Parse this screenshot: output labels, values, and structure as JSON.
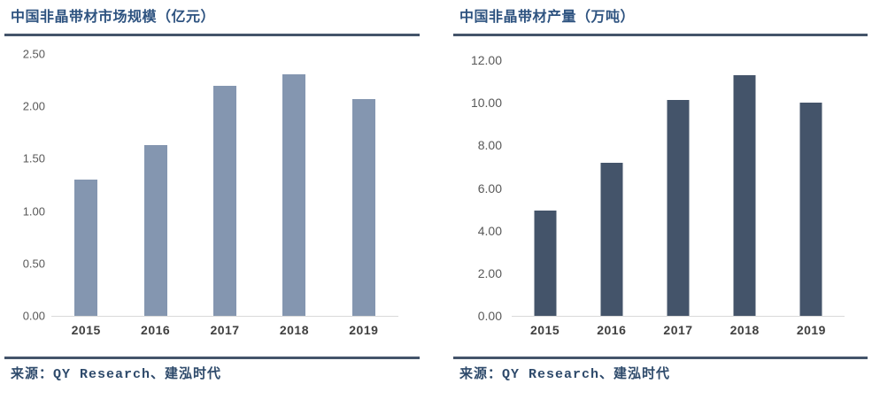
{
  "colors": {
    "background": "#ffffff",
    "title_text": "#2E5380",
    "rule": "#44546A",
    "axis_line": "#D9D9D9",
    "ytick_text": "#595959",
    "xtick_text": "#404040",
    "source_text": "#2E4A6B"
  },
  "chart_data": [
    {
      "type": "bar",
      "title": "中国非晶带材市场规模（亿元）",
      "source": "来源：QY Research、建泓时代",
      "categories": [
        "2015",
        "2016",
        "2017",
        "2018",
        "2019"
      ],
      "values": [
        1.3,
        1.63,
        2.2,
        2.31,
        2.07
      ],
      "ylim": [
        0,
        2.5
      ],
      "ytick_step": 0.5,
      "ytick_labels": [
        "0.00",
        "0.50",
        "1.00",
        "1.50",
        "2.00",
        "2.50"
      ],
      "bar_color": "#8496B0",
      "grid": false,
      "legend": false,
      "xlabel": "",
      "ylabel": ""
    },
    {
      "type": "bar",
      "title": "中国非晶带材产量（万吨）",
      "source": "来源：QY Research、建泓时代",
      "categories": [
        "2015",
        "2016",
        "2017",
        "2018",
        "2019"
      ],
      "values": [
        4.95,
        7.17,
        10.12,
        11.3,
        10.0
      ],
      "ylim": [
        0,
        12
      ],
      "ytick_step": 2,
      "ytick_labels": [
        "0.00",
        "2.00",
        "4.00",
        "6.00",
        "8.00",
        "10.00",
        "12.00"
      ],
      "bar_color": "#44546A",
      "grid": false,
      "legend": false,
      "xlabel": "",
      "ylabel": ""
    }
  ]
}
